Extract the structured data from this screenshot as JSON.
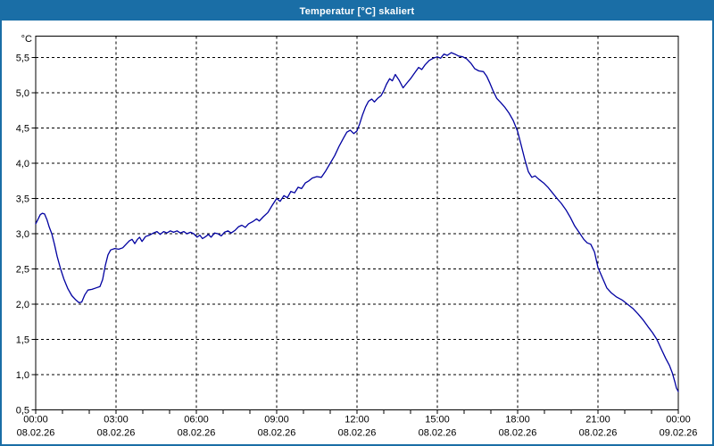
{
  "window": {
    "title": "Temperatur [°C] skaliert",
    "title_bar_color": "#1a6ea6",
    "border_color": "#1a6ea6"
  },
  "chart_data": {
    "type": "line",
    "title": "Temperatur [°C] skaliert",
    "series_name": "Temperatur",
    "line_color": "#0000a0",
    "grid": "dashed",
    "grid_color": "#000000",
    "legend_position": "none",
    "y_axis": {
      "unit_label": "°C",
      "min": 0.5,
      "max": 5.82,
      "tick_step": 0.5,
      "tick_values": [
        0.5,
        1.0,
        1.5,
        2.0,
        2.5,
        3.0,
        3.5,
        4.0,
        4.5,
        5.0,
        5.5
      ],
      "tick_labels": [
        "0,5",
        "1,0",
        "1,5",
        "2,0",
        "2,5",
        "3,0",
        "3,5",
        "4,0",
        "4,5",
        "5,0",
        "5,5"
      ]
    },
    "x_axis": {
      "hours_range": [
        0,
        24
      ],
      "minor_tick_every_hours": 1,
      "major_tick_every_hours": 3,
      "tick_labels": [
        {
          "hour": 0,
          "time": "00:00",
          "date": "08.02.26"
        },
        {
          "hour": 3,
          "time": "03:00",
          "date": "08.02.26"
        },
        {
          "hour": 6,
          "time": "06:00",
          "date": "08.02.26"
        },
        {
          "hour": 9,
          "time": "09:00",
          "date": "08.02.26"
        },
        {
          "hour": 12,
          "time": "12:00",
          "date": "08.02.26"
        },
        {
          "hour": 15,
          "time": "15:00",
          "date": "08.02.26"
        },
        {
          "hour": 18,
          "time": "18:00",
          "date": "08.02.26"
        },
        {
          "hour": 21,
          "time": "21:00",
          "date": "08.02.26"
        },
        {
          "hour": 24,
          "time": "00:00",
          "date": "09.02.26"
        }
      ]
    },
    "points_hours_celsius": [
      [
        0.0,
        3.14
      ],
      [
        0.08,
        3.2
      ],
      [
        0.17,
        3.27
      ],
      [
        0.25,
        3.29
      ],
      [
        0.33,
        3.28
      ],
      [
        0.42,
        3.2
      ],
      [
        0.5,
        3.1
      ],
      [
        0.6,
        3.0
      ],
      [
        0.7,
        2.85
      ],
      [
        0.8,
        2.68
      ],
      [
        0.93,
        2.5
      ],
      [
        1.05,
        2.36
      ],
      [
        1.2,
        2.22
      ],
      [
        1.35,
        2.12
      ],
      [
        1.5,
        2.06
      ],
      [
        1.62,
        2.02
      ],
      [
        1.72,
        2.03
      ],
      [
        1.83,
        2.13
      ],
      [
        1.95,
        2.2
      ],
      [
        2.1,
        2.21
      ],
      [
        2.25,
        2.23
      ],
      [
        2.4,
        2.25
      ],
      [
        2.5,
        2.35
      ],
      [
        2.6,
        2.55
      ],
      [
        2.7,
        2.7
      ],
      [
        2.8,
        2.77
      ],
      [
        2.95,
        2.79
      ],
      [
        3.1,
        2.78
      ],
      [
        3.25,
        2.8
      ],
      [
        3.4,
        2.86
      ],
      [
        3.5,
        2.9
      ],
      [
        3.6,
        2.92
      ],
      [
        3.7,
        2.86
      ],
      [
        3.8,
        2.92
      ],
      [
        3.88,
        2.95
      ],
      [
        3.97,
        2.89
      ],
      [
        4.1,
        2.96
      ],
      [
        4.25,
        2.98
      ],
      [
        4.4,
        3.01
      ],
      [
        4.53,
        3.03
      ],
      [
        4.65,
        2.99
      ],
      [
        4.78,
        3.03
      ],
      [
        4.9,
        3.01
      ],
      [
        5.03,
        3.04
      ],
      [
        5.15,
        3.02
      ],
      [
        5.28,
        3.04
      ],
      [
        5.4,
        3.01
      ],
      [
        5.53,
        3.03
      ],
      [
        5.65,
        3.0
      ],
      [
        5.78,
        3.02
      ],
      [
        5.9,
        3.0
      ],
      [
        6.03,
        2.95
      ],
      [
        6.13,
        2.98
      ],
      [
        6.23,
        2.93
      ],
      [
        6.35,
        2.96
      ],
      [
        6.45,
        2.99
      ],
      [
        6.55,
        2.95
      ],
      [
        6.68,
        3.01
      ],
      [
        6.8,
        3.0
      ],
      [
        6.93,
        2.97
      ],
      [
        7.05,
        3.02
      ],
      [
        7.18,
        3.04
      ],
      [
        7.3,
        3.01
      ],
      [
        7.45,
        3.05
      ],
      [
        7.58,
        3.1
      ],
      [
        7.7,
        3.12
      ],
      [
        7.83,
        3.09
      ],
      [
        7.95,
        3.14
      ],
      [
        8.1,
        3.17
      ],
      [
        8.25,
        3.21
      ],
      [
        8.35,
        3.18
      ],
      [
        8.5,
        3.24
      ],
      [
        8.67,
        3.3
      ],
      [
        8.83,
        3.4
      ],
      [
        9.0,
        3.5
      ],
      [
        9.13,
        3.46
      ],
      [
        9.27,
        3.54
      ],
      [
        9.4,
        3.51
      ],
      [
        9.53,
        3.6
      ],
      [
        9.67,
        3.58
      ],
      [
        9.8,
        3.66
      ],
      [
        9.93,
        3.64
      ],
      [
        10.07,
        3.72
      ],
      [
        10.2,
        3.75
      ],
      [
        10.33,
        3.79
      ],
      [
        10.5,
        3.81
      ],
      [
        10.67,
        3.8
      ],
      [
        10.83,
        3.89
      ],
      [
        11.0,
        4.0
      ],
      [
        11.17,
        4.11
      ],
      [
        11.33,
        4.24
      ],
      [
        11.5,
        4.36
      ],
      [
        11.62,
        4.44
      ],
      [
        11.75,
        4.47
      ],
      [
        11.88,
        4.42
      ],
      [
        12.0,
        4.46
      ],
      [
        12.1,
        4.56
      ],
      [
        12.2,
        4.68
      ],
      [
        12.32,
        4.8
      ],
      [
        12.43,
        4.88
      ],
      [
        12.55,
        4.91
      ],
      [
        12.65,
        4.87
      ],
      [
        12.77,
        4.92
      ],
      [
        12.9,
        4.96
      ],
      [
        13.0,
        5.03
      ],
      [
        13.1,
        5.12
      ],
      [
        13.22,
        5.2
      ],
      [
        13.32,
        5.17
      ],
      [
        13.43,
        5.26
      ],
      [
        13.57,
        5.18
      ],
      [
        13.72,
        5.07
      ],
      [
        13.87,
        5.14
      ],
      [
        14.0,
        5.2
      ],
      [
        14.15,
        5.28
      ],
      [
        14.3,
        5.36
      ],
      [
        14.42,
        5.33
      ],
      [
        14.55,
        5.4
      ],
      [
        14.7,
        5.46
      ],
      [
        14.85,
        5.49
      ],
      [
        15.0,
        5.51
      ],
      [
        15.12,
        5.49
      ],
      [
        15.25,
        5.55
      ],
      [
        15.37,
        5.53
      ],
      [
        15.52,
        5.57
      ],
      [
        15.65,
        5.55
      ],
      [
        15.8,
        5.52
      ],
      [
        15.95,
        5.51
      ],
      [
        16.1,
        5.48
      ],
      [
        16.25,
        5.42
      ],
      [
        16.4,
        5.34
      ],
      [
        16.55,
        5.31
      ],
      [
        16.72,
        5.3
      ],
      [
        16.85,
        5.23
      ],
      [
        16.97,
        5.13
      ],
      [
        17.08,
        5.03
      ],
      [
        17.22,
        4.92
      ],
      [
        17.37,
        4.86
      ],
      [
        17.53,
        4.79
      ],
      [
        17.68,
        4.71
      ],
      [
        17.83,
        4.61
      ],
      [
        18.0,
        4.45
      ],
      [
        18.13,
        4.26
      ],
      [
        18.27,
        4.05
      ],
      [
        18.4,
        3.88
      ],
      [
        18.53,
        3.8
      ],
      [
        18.65,
        3.82
      ],
      [
        18.8,
        3.77
      ],
      [
        18.97,
        3.72
      ],
      [
        19.13,
        3.66
      ],
      [
        19.3,
        3.58
      ],
      [
        19.47,
        3.5
      ],
      [
        19.63,
        3.43
      ],
      [
        19.8,
        3.34
      ],
      [
        19.97,
        3.23
      ],
      [
        20.13,
        3.11
      ],
      [
        20.33,
        3.0
      ],
      [
        20.47,
        2.92
      ],
      [
        20.6,
        2.87
      ],
      [
        20.73,
        2.85
      ],
      [
        20.87,
        2.74
      ],
      [
        21.0,
        2.52
      ],
      [
        21.17,
        2.37
      ],
      [
        21.33,
        2.23
      ],
      [
        21.5,
        2.16
      ],
      [
        21.7,
        2.1
      ],
      [
        21.9,
        2.06
      ],
      [
        22.1,
        2.0
      ],
      [
        22.3,
        1.94
      ],
      [
        22.5,
        1.86
      ],
      [
        22.7,
        1.77
      ],
      [
        22.87,
        1.68
      ],
      [
        23.03,
        1.6
      ],
      [
        23.2,
        1.5
      ],
      [
        23.37,
        1.36
      ],
      [
        23.53,
        1.23
      ],
      [
        23.67,
        1.13
      ],
      [
        23.78,
        1.02
      ],
      [
        23.87,
        0.9
      ],
      [
        23.93,
        0.81
      ],
      [
        24.0,
        0.76
      ]
    ]
  }
}
